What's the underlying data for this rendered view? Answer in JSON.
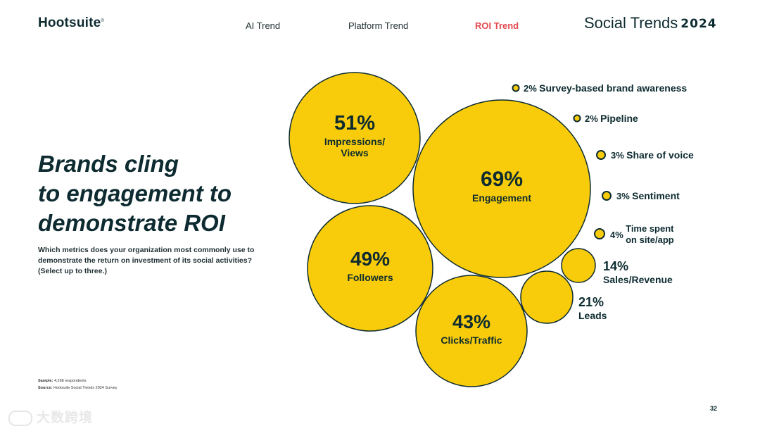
{
  "header": {
    "logo": "Hootsuite",
    "logo_mark": "®",
    "nav": [
      {
        "label": "AI Trend",
        "active": false
      },
      {
        "label": "Platform Trend",
        "active": false
      },
      {
        "label": "ROI Trend",
        "active": true
      }
    ],
    "brand_title": "Social Trends",
    "brand_year": "2024"
  },
  "main": {
    "headline": "Brands cling\nto engagement to\ndemonstrate ROI",
    "question": "Which metrics does your organization most commonly use to demonstrate the return on investment of its social activities? (Select up to three.)"
  },
  "footer": {
    "sample_label": "Sample:",
    "sample_value": "4,268 respondents",
    "source_label": "Source:",
    "source_value": "Hootsuite Social Trends 2024 Survey",
    "page_number": "32",
    "watermark": "大数跨境"
  },
  "colors": {
    "bubble_fill": "#f8cc0a",
    "bubble_stroke": "#0d2b30",
    "text_dark": "#0d2b30",
    "accent_red": "#e3494f"
  },
  "chart_data": {
    "type": "bubble",
    "title": "",
    "items": [
      {
        "label": "Engagement",
        "value": 69,
        "value_label": "69%"
      },
      {
        "label": "Impressions/ Views",
        "value": 51,
        "value_label": "51%"
      },
      {
        "label": "Followers",
        "value": 49,
        "value_label": "49%"
      },
      {
        "label": "Clicks/Traffic",
        "value": 43,
        "value_label": "43%"
      },
      {
        "label": "Leads",
        "value": 21,
        "value_label": "21%"
      },
      {
        "label": "Sales/Revenue",
        "value": 14,
        "value_label": "14%"
      },
      {
        "label": "Time spent on site/app",
        "value": 4,
        "value_label": "4%"
      },
      {
        "label": "Sentiment",
        "value": 3,
        "value_label": "3%"
      },
      {
        "label": "Share of voice",
        "value": 3,
        "value_label": "3%"
      },
      {
        "label": "Pipeline",
        "value": 2,
        "value_label": "2%"
      },
      {
        "label": "Survey-based brand awareness",
        "value": 2,
        "value_label": "2%"
      }
    ]
  }
}
